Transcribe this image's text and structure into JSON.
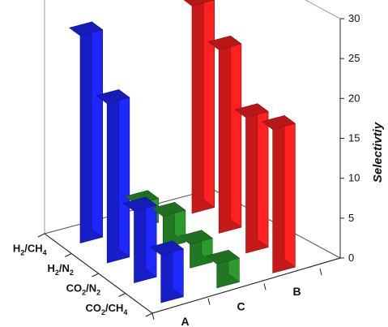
{
  "chart_data": {
    "type": "bar",
    "chart_subtype": "3d-grouped-bar",
    "title": "",
    "zlabel": "Selectivtiy",
    "zlim": [
      0,
      30
    ],
    "zticks": [
      0,
      5,
      10,
      15,
      20,
      25,
      30
    ],
    "series": [
      {
        "name": "A",
        "color": "#1f27ff",
        "values": [
          {
            "gas_pair": "H2/CH4",
            "value": 26
          },
          {
            "gas_pair": "H2/N2",
            "value": 20
          },
          {
            "gas_pair": "CO2/N2",
            "value": 9
          },
          {
            "gas_pair": "CO2/CH4",
            "value": 6
          }
        ]
      },
      {
        "name": "C",
        "color": "#2c9a2c",
        "values": [
          {
            "gas_pair": "H2/CH4",
            "value": 3
          },
          {
            "gas_pair": "H2/N2",
            "value": 4
          },
          {
            "gas_pair": "CO2/N2",
            "value": 3
          },
          {
            "gas_pair": "CO2/CH4",
            "value": 3
          }
        ]
      },
      {
        "name": "B",
        "color": "#ff2020",
        "values": [
          {
            "gas_pair": "H2/CH4",
            "value": 26
          },
          {
            "gas_pair": "H2/N2",
            "value": 23
          },
          {
            "gas_pair": "CO2/N2",
            "value": 17
          },
          {
            "gas_pair": "CO2/CH4",
            "value": 18
          }
        ]
      }
    ],
    "categories": [
      "H2/CH4",
      "H2/N2",
      "CO2/N2",
      "CO2/CH4"
    ],
    "category_labels": [
      {
        "base": "H",
        "sub": "2",
        "rest": "/CH",
        "sub2": "4"
      },
      {
        "base": "H",
        "sub": "2",
        "rest": "/N",
        "sub2": "2"
      },
      {
        "base": "CO",
        "sub": "2",
        "rest": "/N",
        "sub2": "2"
      },
      {
        "base": "CO",
        "sub": "2",
        "rest": "/CH",
        "sub2": "4"
      }
    ],
    "legend": "none",
    "grid": false
  }
}
